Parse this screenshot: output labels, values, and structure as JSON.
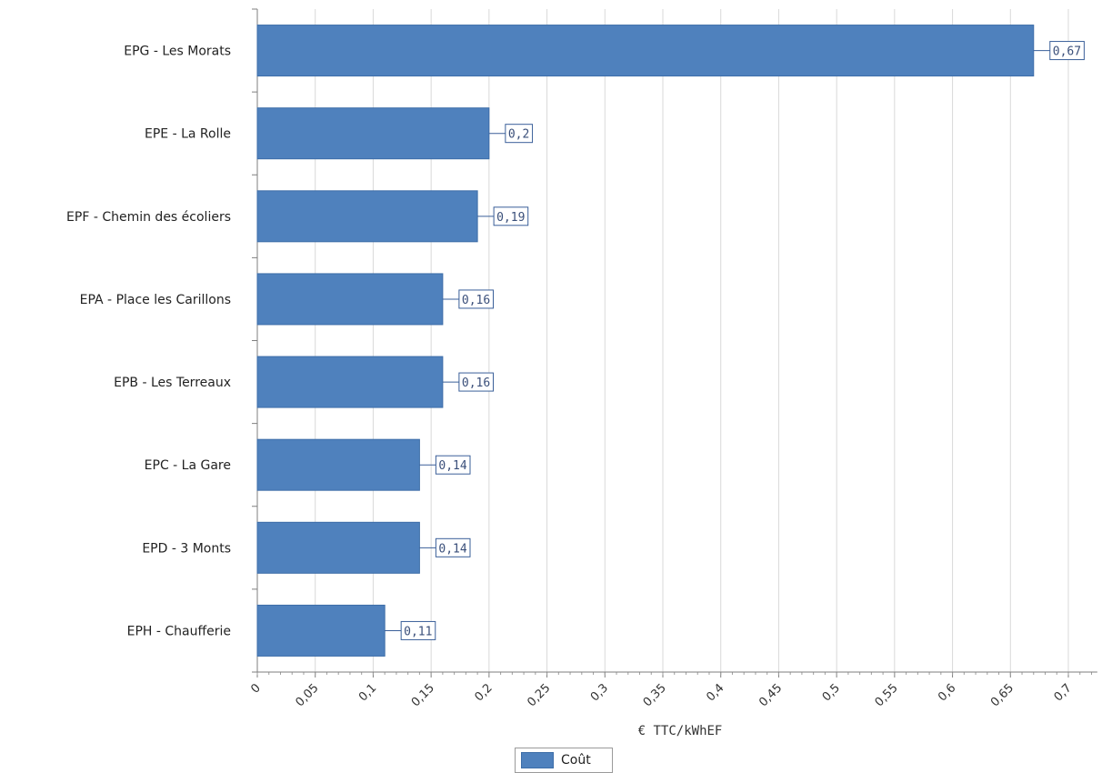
{
  "chart_data": {
    "type": "bar",
    "orientation": "horizontal",
    "categories": [
      "EPG - Les Morats",
      "EPE - La Rolle",
      "EPF - Chemin des écoliers",
      "EPA - Place les Carillons",
      "EPB - Les Terreaux",
      "EPC - La Gare",
      "EPD - 3 Monts",
      "EPH - Chaufferie"
    ],
    "values": [
      0.67,
      0.2,
      0.19,
      0.16,
      0.16,
      0.14,
      0.14,
      0.11
    ],
    "value_labels": [
      "0,67",
      "0,2",
      "0,19",
      "0,16",
      "0,16",
      "0,14",
      "0,14",
      "0,11"
    ],
    "xlabel": "€ TTC/kWhEF",
    "xlim": [
      0,
      0.725
    ],
    "x_ticks": [
      0,
      0.05,
      0.1,
      0.15,
      0.2,
      0.25,
      0.3,
      0.35,
      0.4,
      0.45,
      0.5,
      0.55,
      0.6,
      0.65,
      0.7
    ],
    "x_tick_labels": [
      "0",
      "0,05",
      "0,1",
      "0,15",
      "0,2",
      "0,25",
      "0,3",
      "0,35",
      "0,4",
      "0,45",
      "0,5",
      "0,55",
      "0,6",
      "0,65",
      "0,7"
    ],
    "grid": true,
    "legend_position": "bottom",
    "series": [
      {
        "name": "Coût",
        "color": "#4f81bd"
      }
    ]
  }
}
